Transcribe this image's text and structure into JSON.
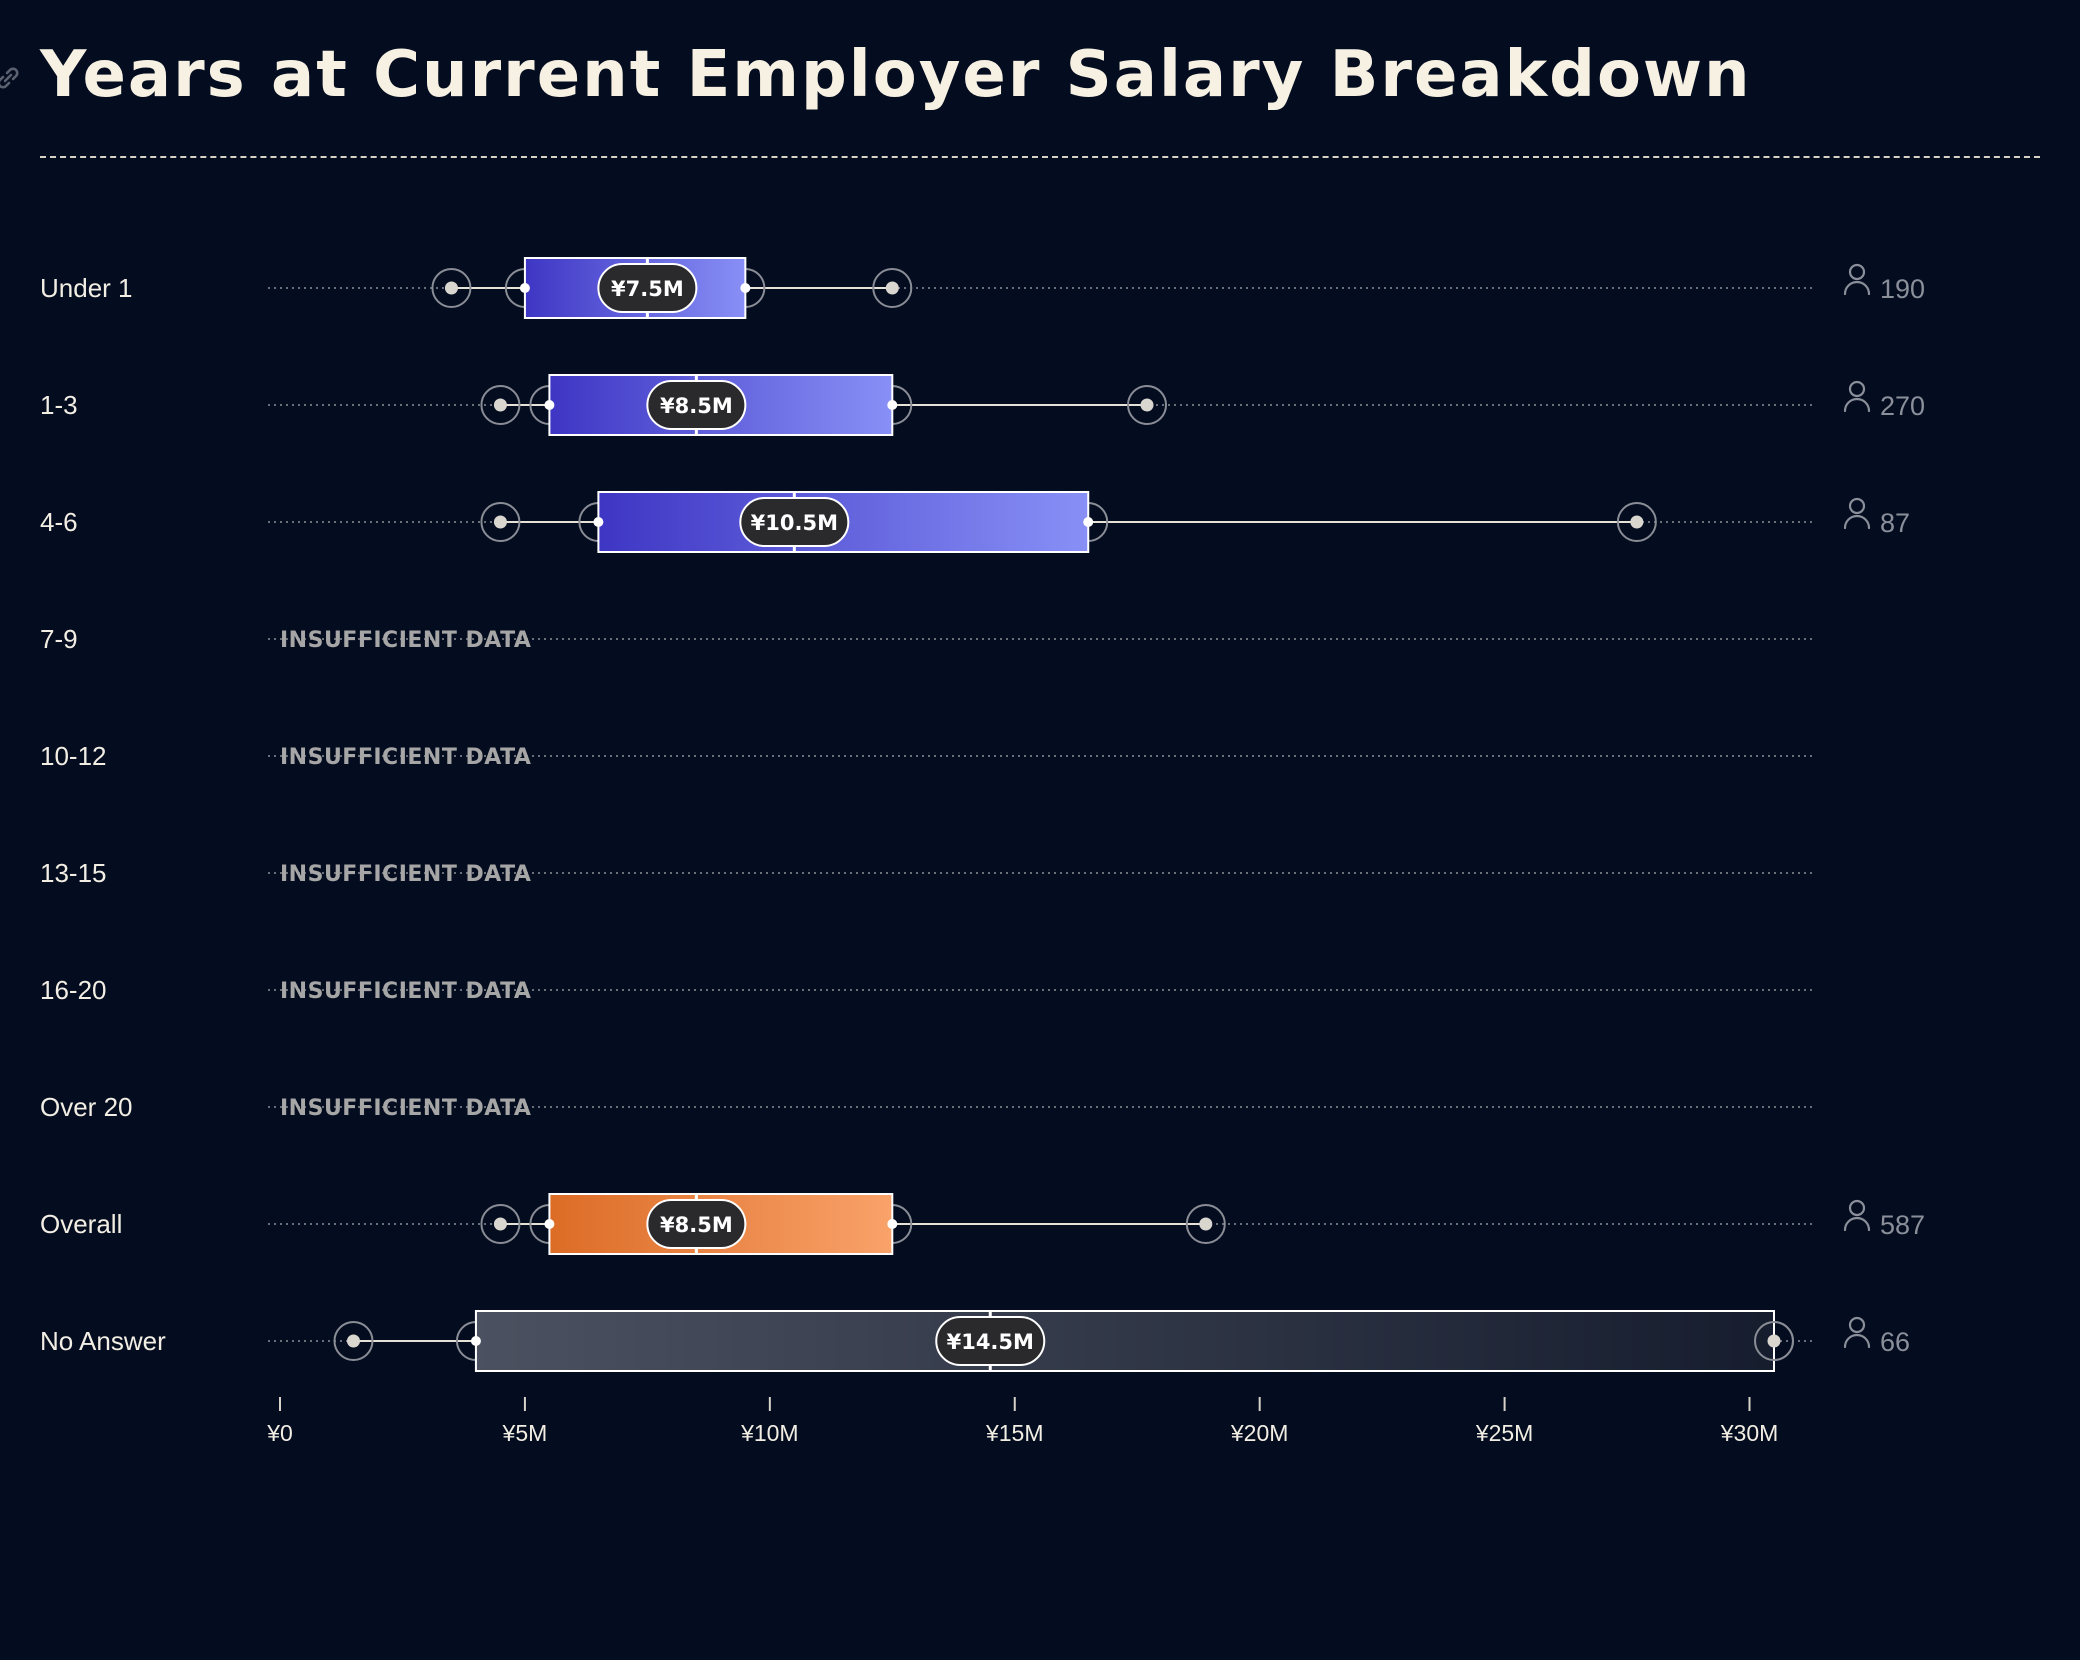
{
  "title": "Years at Current Employer Salary Breakdown",
  "icons": {
    "title_link": "link-icon",
    "respondents": "person-icon"
  },
  "chart_data": {
    "type": "boxplot",
    "title": "Years at Current Employer Salary Breakdown",
    "xlabel": "",
    "ylabel": "",
    "xlim": [
      0,
      30500000
    ],
    "x_ticks": [
      {
        "value": 0,
        "label": "¥0"
      },
      {
        "value": 5000000,
        "label": "¥5M"
      },
      {
        "value": 10000000,
        "label": "¥10M"
      },
      {
        "value": 15000000,
        "label": "¥15M"
      },
      {
        "value": 20000000,
        "label": "¥20M"
      },
      {
        "value": 25000000,
        "label": "¥25M"
      },
      {
        "value": 30000000,
        "label": "¥30M"
      }
    ],
    "insufficient_label": "INSUFFICIENT DATA",
    "colors": {
      "background": "#040c1f",
      "blue_start": "#3e36c4",
      "blue_end": "#8890f6",
      "orange_start": "#dc6c26",
      "orange_end": "#f9a26a",
      "gray_start": "#4b5160",
      "gray_end": "#161d2e",
      "median_pill": "#2a2a2c"
    },
    "rows": [
      {
        "label": "Under 1",
        "style": "blue",
        "p10": 3500000,
        "q1": 5000000,
        "median": 7500000,
        "q3": 9500000,
        "p90": 12500000,
        "median_label": "¥7.5M",
        "count": "190"
      },
      {
        "label": "1-3",
        "style": "blue",
        "p10": 4500000,
        "q1": 5500000,
        "median": 8500000,
        "q3": 12500000,
        "p90": 17700000,
        "median_label": "¥8.5M",
        "count": "270"
      },
      {
        "label": "4-6",
        "style": "blue",
        "p10": 4500000,
        "q1": 6500000,
        "median": 10500000,
        "q3": 16500000,
        "p90": 27700000,
        "median_label": "¥10.5M",
        "count": "87"
      },
      {
        "label": "7-9",
        "insufficient": true
      },
      {
        "label": "10-12",
        "insufficient": true
      },
      {
        "label": "13-15",
        "insufficient": true
      },
      {
        "label": "16-20",
        "insufficient": true
      },
      {
        "label": "Over 20",
        "insufficient": true
      },
      {
        "label": "Overall",
        "style": "orange",
        "p10": 4500000,
        "q1": 5500000,
        "median": 8500000,
        "q3": 12500000,
        "p90": 18900000,
        "median_label": "¥8.5M",
        "count": "587"
      },
      {
        "label": "No Answer",
        "style": "gray",
        "p10": 1500000,
        "q1": 4000000,
        "median": 14500000,
        "q3": 30500000,
        "p90": 30500000,
        "median_label": "¥14.5M",
        "count": "66"
      }
    ]
  }
}
